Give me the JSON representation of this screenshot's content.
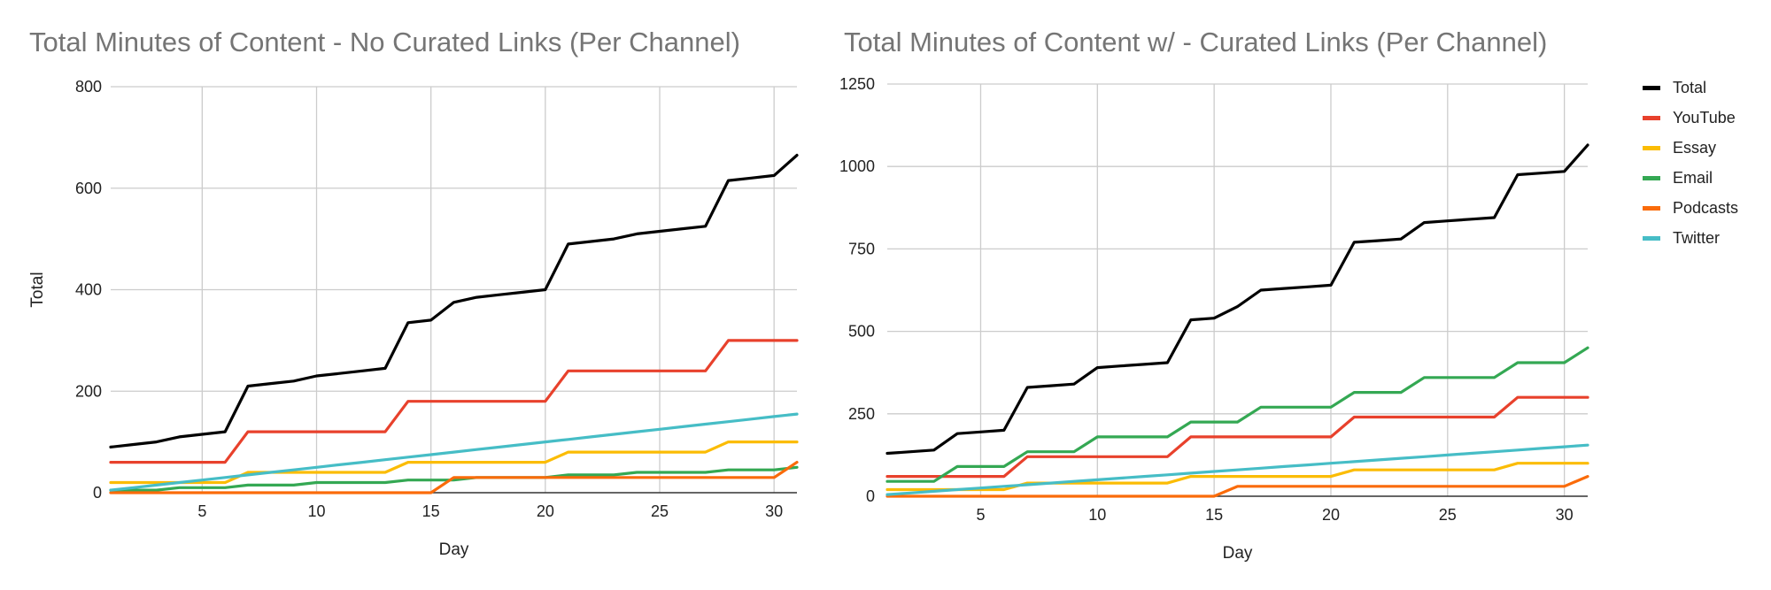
{
  "colors": {
    "Total": "#000000",
    "YouTube": "#e8412c",
    "Essay": "#fbbc04",
    "Email": "#34a853",
    "Podcasts": "#fa6b0a",
    "Twitter": "#46bdc6",
    "grid": "#cccccc",
    "title": "#757575"
  },
  "chart_data": [
    {
      "type": "line",
      "title": "Total Minutes of Content - No Curated Links (Per Channel)",
      "xlabel": "Day",
      "ylabel": "Total",
      "xlim": [
        1,
        31
      ],
      "ylim": [
        0,
        800
      ],
      "x_ticks": [
        5,
        10,
        15,
        20,
        25,
        30
      ],
      "y_ticks": [
        0,
        200,
        400,
        600,
        800
      ],
      "grid": true,
      "legend": "none",
      "x": [
        1,
        2,
        3,
        4,
        5,
        6,
        7,
        8,
        9,
        10,
        11,
        12,
        13,
        14,
        15,
        16,
        17,
        18,
        19,
        20,
        21,
        22,
        23,
        24,
        25,
        26,
        27,
        28,
        29,
        30,
        31
      ],
      "series": [
        {
          "name": "Total",
          "values": [
            90,
            95,
            100,
            110,
            115,
            120,
            210,
            215,
            220,
            230,
            235,
            240,
            245,
            335,
            340,
            375,
            385,
            390,
            395,
            400,
            490,
            495,
            500,
            510,
            515,
            520,
            525,
            615,
            620,
            625,
            665
          ]
        },
        {
          "name": "YouTube",
          "values": [
            60,
            60,
            60,
            60,
            60,
            60,
            120,
            120,
            120,
            120,
            120,
            120,
            120,
            180,
            180,
            180,
            180,
            180,
            180,
            180,
            240,
            240,
            240,
            240,
            240,
            240,
            240,
            300,
            300,
            300,
            300
          ]
        },
        {
          "name": "Essay",
          "values": [
            20,
            20,
            20,
            20,
            20,
            20,
            40,
            40,
            40,
            40,
            40,
            40,
            40,
            60,
            60,
            60,
            60,
            60,
            60,
            60,
            80,
            80,
            80,
            80,
            80,
            80,
            80,
            100,
            100,
            100,
            100
          ]
        },
        {
          "name": "Email",
          "values": [
            5,
            5,
            5,
            10,
            10,
            10,
            15,
            15,
            15,
            20,
            20,
            20,
            20,
            25,
            25,
            25,
            30,
            30,
            30,
            30,
            35,
            35,
            35,
            40,
            40,
            40,
            40,
            45,
            45,
            45,
            50
          ]
        },
        {
          "name": "Podcasts",
          "values": [
            0,
            0,
            0,
            0,
            0,
            0,
            0,
            0,
            0,
            0,
            0,
            0,
            0,
            0,
            0,
            30,
            30,
            30,
            30,
            30,
            30,
            30,
            30,
            30,
            30,
            30,
            30,
            30,
            30,
            30,
            60
          ]
        },
        {
          "name": "Twitter",
          "values": [
            5,
            10,
            15,
            20,
            25,
            30,
            35,
            40,
            45,
            50,
            55,
            60,
            65,
            70,
            75,
            80,
            85,
            90,
            95,
            100,
            105,
            110,
            115,
            120,
            125,
            130,
            135,
            140,
            145,
            150,
            155
          ]
        }
      ]
    },
    {
      "type": "line",
      "title": "Total Minutes of Content w/ - Curated Links (Per Channel)",
      "xlabel": "Day",
      "ylabel": "",
      "xlim": [
        1,
        31
      ],
      "ylim": [
        0,
        1250
      ],
      "x_ticks": [
        5,
        10,
        15,
        20,
        25,
        30
      ],
      "y_ticks": [
        0,
        250,
        500,
        750,
        1000,
        1250
      ],
      "grid": true,
      "legend": "right",
      "x": [
        1,
        2,
        3,
        4,
        5,
        6,
        7,
        8,
        9,
        10,
        11,
        12,
        13,
        14,
        15,
        16,
        17,
        18,
        19,
        20,
        21,
        22,
        23,
        24,
        25,
        26,
        27,
        28,
        29,
        30,
        31
      ],
      "series": [
        {
          "name": "Total",
          "values": [
            130,
            135,
            140,
            190,
            195,
            200,
            330,
            335,
            340,
            390,
            395,
            400,
            405,
            535,
            540,
            575,
            625,
            630,
            635,
            640,
            770,
            775,
            780,
            830,
            835,
            840,
            845,
            975,
            980,
            985,
            1065
          ]
        },
        {
          "name": "YouTube",
          "values": [
            60,
            60,
            60,
            60,
            60,
            60,
            120,
            120,
            120,
            120,
            120,
            120,
            120,
            180,
            180,
            180,
            180,
            180,
            180,
            180,
            240,
            240,
            240,
            240,
            240,
            240,
            240,
            300,
            300,
            300,
            300
          ]
        },
        {
          "name": "Essay",
          "values": [
            20,
            20,
            20,
            20,
            20,
            20,
            40,
            40,
            40,
            40,
            40,
            40,
            40,
            60,
            60,
            60,
            60,
            60,
            60,
            60,
            80,
            80,
            80,
            80,
            80,
            80,
            80,
            100,
            100,
            100,
            100
          ]
        },
        {
          "name": "Email",
          "values": [
            45,
            45,
            45,
            90,
            90,
            90,
            135,
            135,
            135,
            180,
            180,
            180,
            180,
            225,
            225,
            225,
            270,
            270,
            270,
            270,
            315,
            315,
            315,
            360,
            360,
            360,
            360,
            405,
            405,
            405,
            450
          ]
        },
        {
          "name": "Podcasts",
          "values": [
            0,
            0,
            0,
            0,
            0,
            0,
            0,
            0,
            0,
            0,
            0,
            0,
            0,
            0,
            0,
            30,
            30,
            30,
            30,
            30,
            30,
            30,
            30,
            30,
            30,
            30,
            30,
            30,
            30,
            30,
            60
          ]
        },
        {
          "name": "Twitter",
          "values": [
            5,
            10,
            15,
            20,
            25,
            30,
            35,
            40,
            45,
            50,
            55,
            60,
            65,
            70,
            75,
            80,
            85,
            90,
            95,
            100,
            105,
            110,
            115,
            120,
            125,
            130,
            135,
            140,
            145,
            150,
            155
          ]
        }
      ]
    }
  ]
}
